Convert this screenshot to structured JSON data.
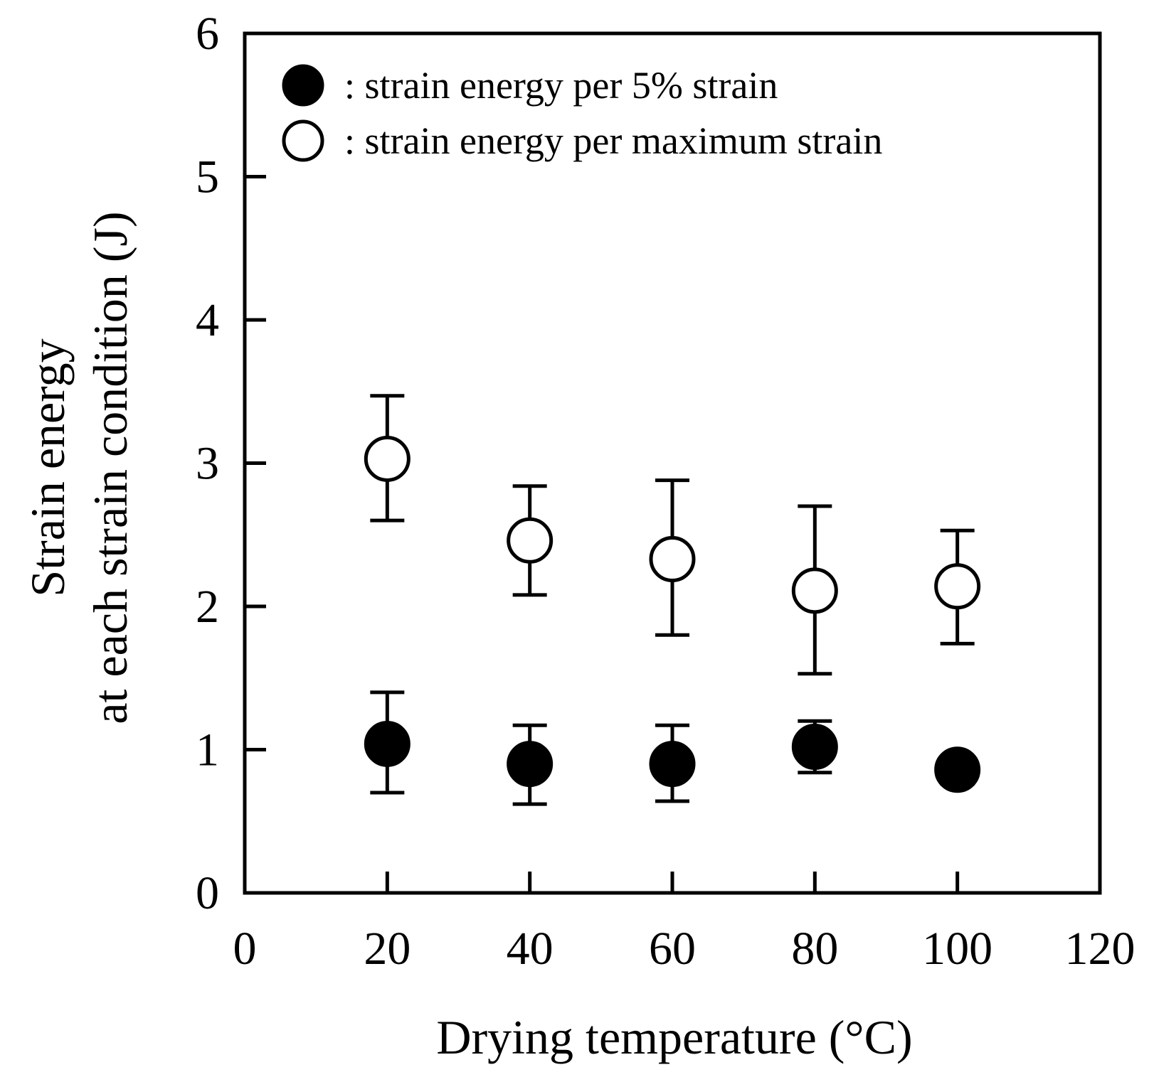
{
  "chart_data": {
    "type": "scatter",
    "xlabel": "Drying temperature (°C)",
    "ylabel_lines": [
      "Strain energy",
      "at each strain condition (J)"
    ],
    "xlim": [
      0,
      120
    ],
    "ylim": [
      0,
      6
    ],
    "xticks": [
      0,
      20,
      40,
      60,
      80,
      100,
      120
    ],
    "yticks": [
      0,
      1,
      2,
      3,
      4,
      5,
      6
    ],
    "grid": false,
    "legend_position": "top-left",
    "series": [
      {
        "name": ": strain energy per 5% strain",
        "marker": "filled-circle",
        "x": [
          20,
          40,
          60,
          80,
          100
        ],
        "y": [
          1.04,
          0.9,
          0.9,
          1.02,
          0.86
        ],
        "err_low": [
          0.7,
          0.62,
          0.64,
          0.84,
          0.76
        ],
        "err_high": [
          1.4,
          1.17,
          1.17,
          1.2,
          0.92
        ]
      },
      {
        "name": ": strain energy per maximum strain",
        "marker": "open-circle",
        "x": [
          20,
          40,
          60,
          80,
          100
        ],
        "y": [
          3.03,
          2.46,
          2.33,
          2.11,
          2.14
        ],
        "err_low": [
          2.6,
          2.08,
          1.8,
          1.53,
          1.74
        ],
        "err_high": [
          3.47,
          2.84,
          2.88,
          2.7,
          2.53
        ]
      }
    ]
  }
}
